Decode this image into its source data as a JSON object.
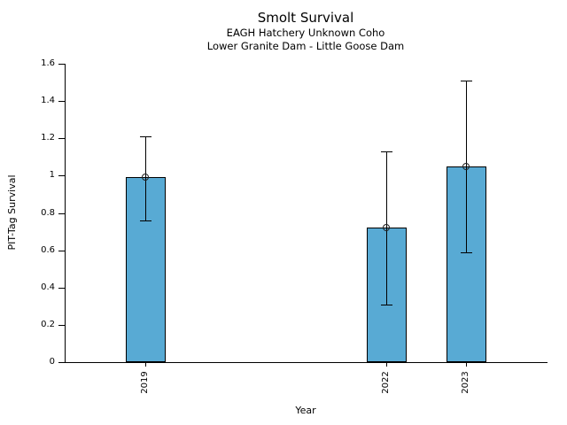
{
  "chart_data": {
    "type": "bar",
    "title": "Smolt Survival",
    "subtitle_line1": "EAGH Hatchery Unknown Coho",
    "subtitle_line2": "Lower Granite Dam - Little Goose Dam",
    "xlabel": "Year",
    "ylabel": "PIT-Tag Survival",
    "categories": [
      "2019",
      "2022",
      "2023"
    ],
    "x": [
      2019,
      2022,
      2023
    ],
    "values": [
      0.99,
      0.72,
      1.05
    ],
    "error_low": [
      0.76,
      0.31,
      0.59
    ],
    "error_high": [
      1.21,
      1.13,
      1.51
    ],
    "xlim": [
      2018,
      2024
    ],
    "ylim": [
      0,
      1.6
    ],
    "yticks": [
      0,
      0.2,
      0.4,
      0.6,
      0.8,
      1,
      1.2,
      1.4,
      1.6
    ],
    "ytick_labels": [
      "0",
      "0.2",
      "0.4",
      "0.6",
      "0.8",
      "1",
      "1.2",
      "1.4",
      "1.6"
    ],
    "bar_width_years": 0.5,
    "bar_color": "#58AAD4",
    "bar_edge_color": "#000000",
    "errorbar_color": "#000000",
    "marker": "open-circle",
    "grid": false,
    "legend": "none"
  }
}
